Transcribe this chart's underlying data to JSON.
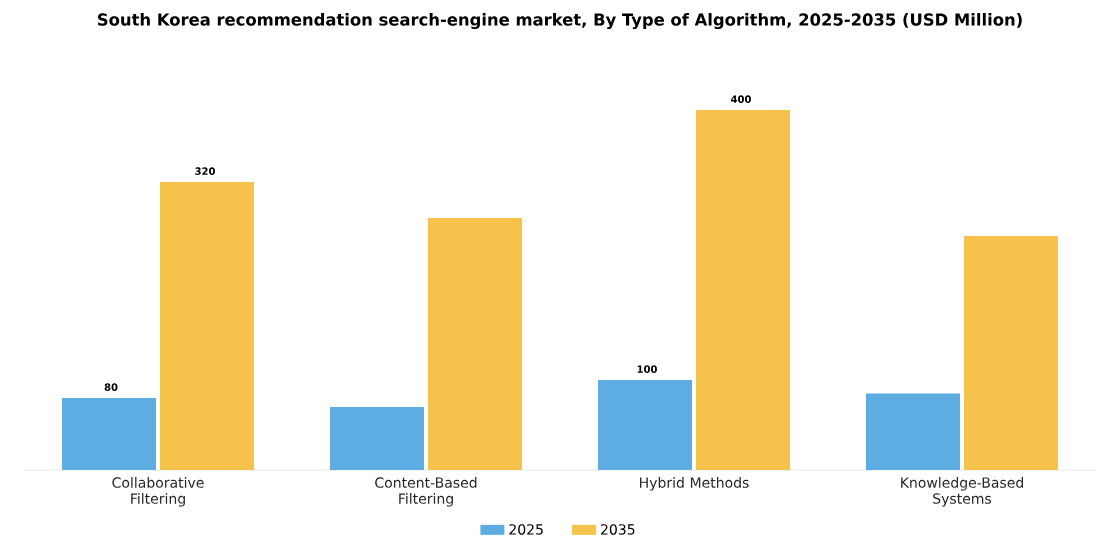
{
  "chart_data": {
    "type": "bar",
    "title": "South Korea recommendation search-engine market, By Type of Algorithm, 2025-2035 (USD Million)",
    "categories": [
      "Collaborative\nFiltering",
      "Content-Based\nFiltering",
      "Hybrid Methods",
      "Knowledge-Based\nSystems"
    ],
    "series": [
      {
        "name": "2025",
        "color": "#5dade2",
        "values": [
          80,
          70,
          100,
          85
        ],
        "value_labels": [
          "80",
          null,
          "100",
          null
        ]
      },
      {
        "name": "2035",
        "color": "#f5c24c",
        "values": [
          320,
          280,
          400,
          260
        ],
        "value_labels": [
          "320",
          null,
          "400",
          null
        ]
      }
    ],
    "legend": "bottom"
  }
}
